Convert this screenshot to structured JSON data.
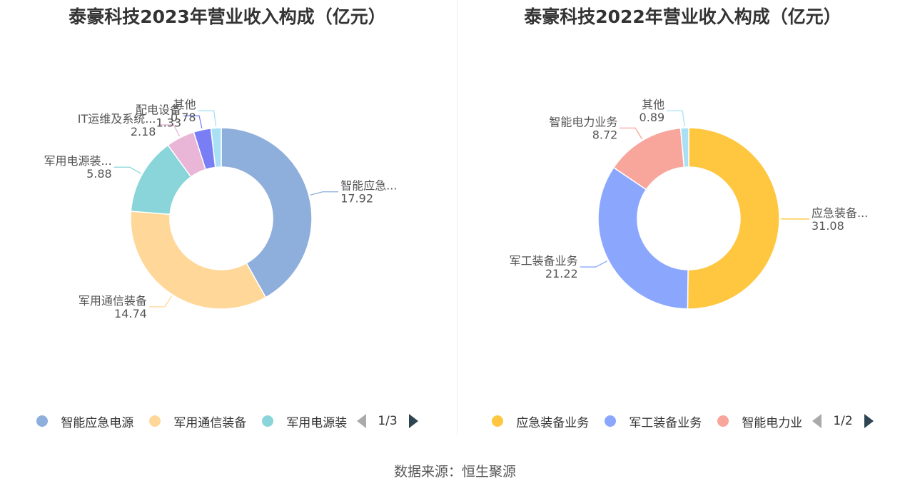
{
  "source": "数据来源：恒生聚源",
  "chart_data": [
    {
      "type": "pie",
      "title": "泰豪科技2023年营业收入构成（亿元）",
      "slices": [
        {
          "name": "智能应急电源",
          "label": "智能应急...",
          "value": 17.92,
          "display": "17.92",
          "color": "#8eaedb"
        },
        {
          "name": "军用通信装备",
          "label": "军用通信装备",
          "value": 14.74,
          "display": "14.74",
          "color": "#ffd899"
        },
        {
          "name": "军用电源装备",
          "label": "军用电源装...",
          "value": 5.88,
          "display": "5.88",
          "color": "#89d5d9"
        },
        {
          "name": "IT运维及系统",
          "label": "IT运维及系统...",
          "value": 2.18,
          "display": "2.18",
          "color": "#e9b6d7"
        },
        {
          "name": "配电设备",
          "label": "配电设备",
          "value": 1.33,
          "display": "1.33",
          "color": "#7a7ef5"
        },
        {
          "name": "其他",
          "label": "其他",
          "value": 0.78,
          "display": "0.78",
          "color": "#a9e0f5"
        }
      ],
      "legend": {
        "items": [
          {
            "label": "智能应急电源",
            "color": "#8eaedb"
          },
          {
            "label": "军用通信装备",
            "color": "#ffd899"
          },
          {
            "label": "军用电源装",
            "color": "#89d5d9"
          }
        ],
        "page": "1/3"
      }
    },
    {
      "type": "pie",
      "title": "泰豪科技2022年营业收入构成（亿元）",
      "slices": [
        {
          "name": "应急装备业务",
          "label": "应急装备...",
          "value": 31.08,
          "display": "31.08",
          "color": "#ffc63f"
        },
        {
          "name": "军工装备业务",
          "label": "军工装备业务",
          "value": 21.22,
          "display": "21.22",
          "color": "#8ba7fd"
        },
        {
          "name": "智能电力业务",
          "label": "智能电力业务",
          "value": 8.72,
          "display": "8.72",
          "color": "#f8a59b"
        },
        {
          "name": "其他",
          "label": "其他",
          "value": 0.89,
          "display": "0.89",
          "color": "#a9e0f5"
        }
      ],
      "legend": {
        "items": [
          {
            "label": "应急装备业务",
            "color": "#ffc63f"
          },
          {
            "label": "军工装备业务",
            "color": "#8ba7fd"
          },
          {
            "label": "智能电力业",
            "color": "#f8a59b"
          }
        ],
        "page": "1/2"
      }
    }
  ]
}
